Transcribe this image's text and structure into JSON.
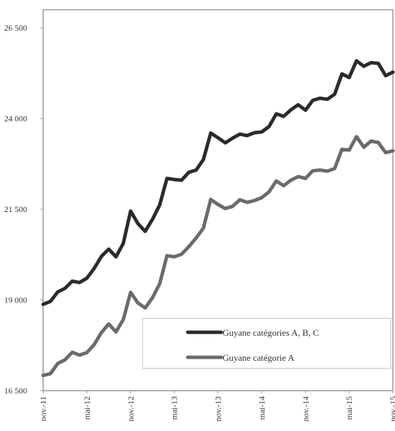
{
  "chart_data": {
    "type": "line",
    "title": "",
    "xlabel": "",
    "ylabel": "",
    "ylim": [
      16500,
      26500
    ],
    "yticks": [
      {
        "value": 16500,
        "label": "16 500"
      },
      {
        "value": 19000,
        "label": "19 000"
      },
      {
        "value": 21500,
        "label": "21 500"
      },
      {
        "value": 24000,
        "label": "24 000"
      },
      {
        "value": 26500,
        "label": "26 500"
      }
    ],
    "xtick_labels": [
      "nov.-11",
      "mai-12",
      "nov.-12",
      "mai-13",
      "nov.-13",
      "mai-14",
      "nov.-14",
      "mai-15",
      "nov.-15"
    ],
    "x": [
      "nov.-11",
      "déc.-11",
      "janv.-12",
      "févr.-12",
      "mars-12",
      "avr.-12",
      "mai-12",
      "juin-12",
      "juil.-12",
      "août-12",
      "sept.-12",
      "oct.-12",
      "nov.-12",
      "déc.-12",
      "janv.-13",
      "févr.-13",
      "mars-13",
      "avr.-13",
      "mai-13",
      "juin-13",
      "juil.-13",
      "août-13",
      "sept.-13",
      "oct.-13",
      "nov.-13",
      "déc.-13",
      "janv.-14",
      "févr.-14",
      "mars-14",
      "avr.-14",
      "mai-14",
      "juin-14",
      "juil.-14",
      "août-14",
      "sept.-14",
      "oct.-14",
      "nov.-14",
      "déc.-14",
      "janv.-15",
      "févr.-15",
      "mars-15",
      "avr.-15",
      "mai-15",
      "juin-15",
      "juil.-15",
      "août-15",
      "sept.-15",
      "oct.-15",
      "nov.-15"
    ],
    "series": [
      {
        "name": "Guyane catégories A, B, C",
        "color": "#2b2b2b",
        "values": [
          18880,
          18960,
          19220,
          19320,
          19520,
          19480,
          19600,
          19870,
          20200,
          20400,
          20190,
          20560,
          21450,
          21110,
          20890,
          21220,
          21620,
          22350,
          22320,
          22300,
          22520,
          22580,
          22870,
          23600,
          23470,
          23330,
          23460,
          23570,
          23530,
          23610,
          23630,
          23780,
          24130,
          24060,
          24240,
          24380,
          24230,
          24500,
          24560,
          24530,
          24670,
          25230,
          25130,
          25590,
          25440,
          25540,
          25520,
          25180,
          25280
        ]
      },
      {
        "name": "Guyane catégorie A",
        "color": "#6b6b6b",
        "values": [
          16920,
          16970,
          17250,
          17350,
          17560,
          17480,
          17550,
          17770,
          18100,
          18340,
          18120,
          18460,
          19210,
          18920,
          18780,
          19060,
          19450,
          20220,
          20190,
          20260,
          20470,
          20710,
          20980,
          21770,
          21630,
          21520,
          21580,
          21760,
          21690,
          21740,
          21820,
          21980,
          22280,
          22150,
          22300,
          22400,
          22350,
          22560,
          22580,
          22550,
          22620,
          23150,
          23130,
          23500,
          23210,
          23380,
          23340,
          23060,
          23110
        ]
      }
    ],
    "legend_position": "lower-right",
    "grid": false
  }
}
